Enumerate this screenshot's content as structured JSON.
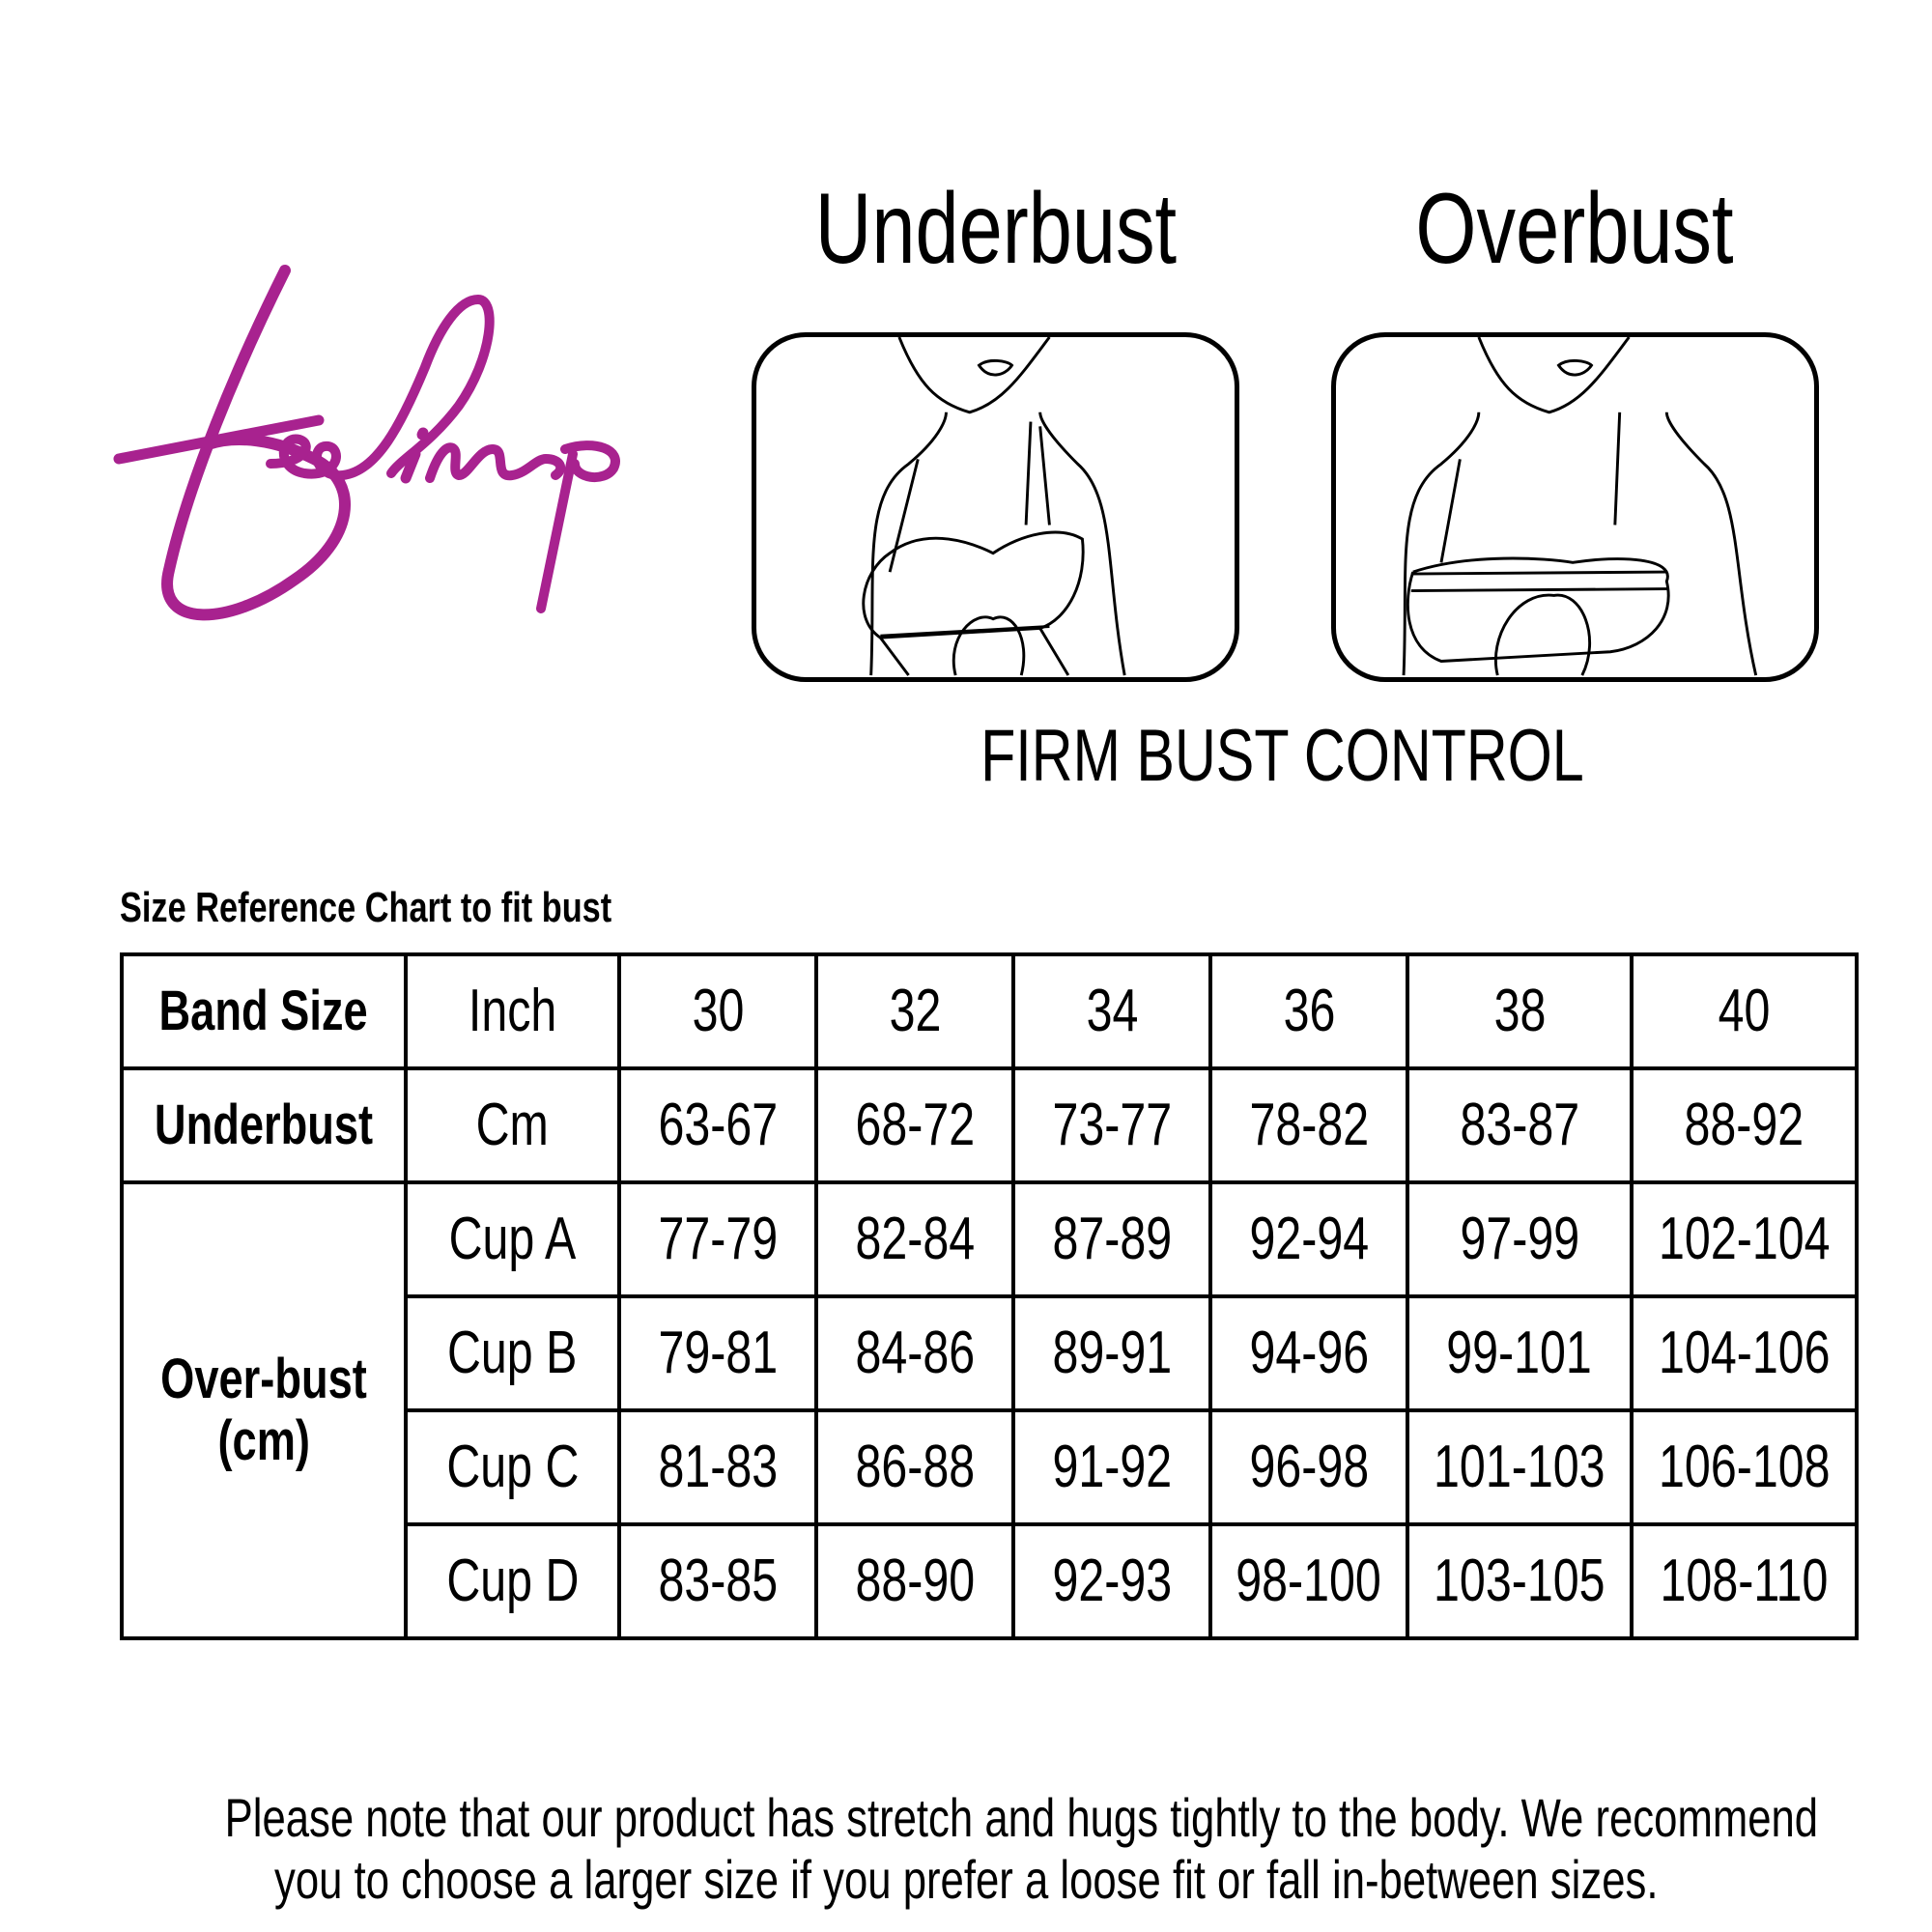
{
  "brand": {
    "logo_text": "feelings",
    "color": "#A8228F"
  },
  "headings": {
    "underbust": "Underbust",
    "overbust": "Overbust",
    "product": "FIRM BUST CONTROL"
  },
  "illustrations": [
    "underbust-measurement-illustration",
    "overbust-measurement-illustration"
  ],
  "chart_caption": "Size Reference Chart to fit bust",
  "table": {
    "band_row": {
      "label": "Band Size",
      "unit": "Inch",
      "values": [
        "30",
        "32",
        "34",
        "36",
        "38",
        "40"
      ]
    },
    "underbust_row": {
      "label": "Underbust",
      "unit": "Cm",
      "values": [
        "63-67",
        "68-72",
        "73-77",
        "78-82",
        "83-87",
        "88-92"
      ]
    },
    "overbust_label_line1": "Over-bust",
    "overbust_label_line2": "(cm)",
    "cup_rows": [
      {
        "cup": "Cup A",
        "values": [
          "77-79",
          "82-84",
          "87-89",
          "92-94",
          "97-99",
          "102-104"
        ]
      },
      {
        "cup": "Cup B",
        "values": [
          "79-81",
          "84-86",
          "89-91",
          "94-96",
          "99-101",
          "104-106"
        ]
      },
      {
        "cup": "Cup C",
        "values": [
          "81-83",
          "86-88",
          "91-92",
          "96-98",
          "101-103",
          "106-108"
        ]
      },
      {
        "cup": "Cup D",
        "values": [
          "83-85",
          "88-90",
          "92-93",
          "98-100",
          "103-105",
          "108-110"
        ]
      }
    ]
  },
  "note": {
    "line1": "Please note that our product has stretch and hugs tightly to the body. We recommend",
    "line2": "you to choose a larger size if you prefer a loose fit or fall in-between sizes."
  }
}
